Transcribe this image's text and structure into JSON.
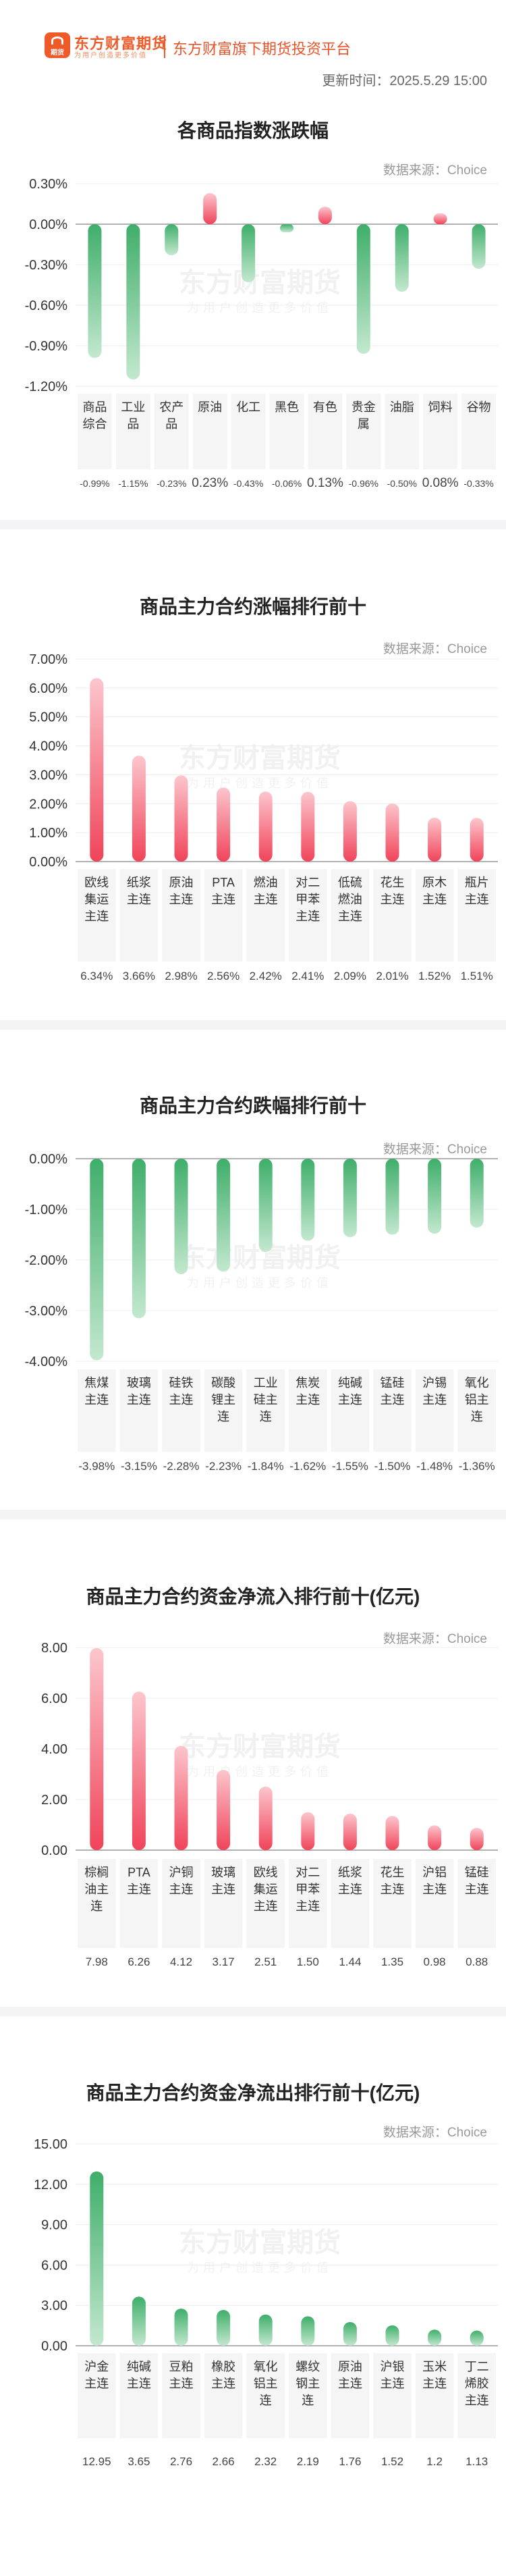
{
  "header": {
    "brand": "东方财富期货",
    "brand_sub": "为用户创造更多价值",
    "logo_text": "期货",
    "platform": "东方财富旗下期货投资平台",
    "updated": "更新时间：2025.5.29 15:00"
  },
  "source_label": "数据来源：Choice",
  "watermark": {
    "main": "东方财富期货",
    "sub": "为用户创造更多价值"
  },
  "colors": {
    "up": "#f0445a",
    "up_light": "#fcc6cd",
    "down": "#3fae6a",
    "down_light": "#c3e8cf",
    "label_bg": "#f5f5f5"
  },
  "chart_data": [
    {
      "type": "bar",
      "title": "各商品指数涨跌幅",
      "categories": [
        "商品综合",
        "工业品",
        "农产品",
        "原油",
        "化工",
        "黑色",
        "有色",
        "贵金属",
        "油脂",
        "饲料",
        "谷物"
      ],
      "values": [
        -0.99,
        -1.15,
        -0.23,
        0.23,
        -0.43,
        -0.06,
        0.13,
        -0.96,
        -0.5,
        0.08,
        -0.33
      ],
      "value_labels": [
        "-0.99%",
        "-1.15%",
        "-0.23%",
        "0.23%",
        "-0.43%",
        "-0.06%",
        "0.13%",
        "-0.96%",
        "-0.50%",
        "0.08%",
        "-0.33%"
      ],
      "yticks": [
        "0.30%",
        "0.00%",
        "-0.30%",
        "-0.60%",
        "-0.90%",
        "-1.20%"
      ],
      "ylim": [
        -1.2,
        0.3
      ]
    },
    {
      "type": "bar",
      "title": "商品主力合约涨幅排行前十",
      "categories": [
        "欧线集运主连",
        "纸浆主连",
        "原油主连",
        "PTA主连",
        "燃油主连",
        "对二甲苯主连",
        "低硫燃油主连",
        "花生主连",
        "原木主连",
        "瓶片主连"
      ],
      "values": [
        6.34,
        3.66,
        2.98,
        2.56,
        2.42,
        2.41,
        2.09,
        2.01,
        1.52,
        1.51
      ],
      "value_labels": [
        "6.34%",
        "3.66%",
        "2.98%",
        "2.56%",
        "2.42%",
        "2.41%",
        "2.09%",
        "2.01%",
        "1.52%",
        "1.51%"
      ],
      "yticks": [
        "7.00%",
        "6.00%",
        "5.00%",
        "4.00%",
        "3.00%",
        "2.00%",
        "1.00%",
        "0.00%"
      ],
      "ylim": [
        0,
        7
      ]
    },
    {
      "type": "bar",
      "title": "商品主力合约跌幅排行前十",
      "categories": [
        "焦煤主连",
        "玻璃主连",
        "硅铁主连",
        "碳酸锂主连",
        "工业硅主连",
        "焦炭主连",
        "纯碱主连",
        "锰硅主连",
        "沪锡主连",
        "氧化铝主连"
      ],
      "values": [
        -3.98,
        -3.15,
        -2.28,
        -2.23,
        -1.84,
        -1.62,
        -1.55,
        -1.5,
        -1.48,
        -1.36
      ],
      "value_labels": [
        "-3.98%",
        "-3.15%",
        "-2.28%",
        "-2.23%",
        "-1.84%",
        "-1.62%",
        "-1.55%",
        "-1.50%",
        "-1.48%",
        "-1.36%"
      ],
      "yticks": [
        "0.00%",
        "-1.00%",
        "-2.00%",
        "-3.00%",
        "-4.00%"
      ],
      "ylim": [
        -4,
        0
      ]
    },
    {
      "type": "bar",
      "title": "商品主力合约资金净流入排行前十(亿元)",
      "categories": [
        "棕榈油主连",
        "PTA主连",
        "沪铜主连",
        "玻璃主连",
        "欧线集运主连",
        "对二甲苯主连",
        "纸浆主连",
        "花生主连",
        "沪铝主连",
        "锰硅主连"
      ],
      "values": [
        7.98,
        6.26,
        4.12,
        3.17,
        2.51,
        1.5,
        1.44,
        1.35,
        0.98,
        0.88
      ],
      "value_labels": [
        "7.98",
        "6.26",
        "4.12",
        "3.17",
        "2.51",
        "1.50",
        "1.44",
        "1.35",
        "0.98",
        "0.88"
      ],
      "yticks": [
        "8.00",
        "6.00",
        "4.00",
        "2.00",
        "0.00"
      ],
      "ylim": [
        0,
        8
      ]
    },
    {
      "type": "bar",
      "title": "商品主力合约资金净流出排行前十(亿元)",
      "categories": [
        "沪金主连",
        "纯碱主连",
        "豆粕主连",
        "橡胶主连",
        "氧化铝主连",
        "螺纹钢主连",
        "原油主连",
        "沪银主连",
        "玉米主连",
        "丁二烯胶主连"
      ],
      "values": [
        12.95,
        3.65,
        2.76,
        2.66,
        2.32,
        2.19,
        1.76,
        1.52,
        1.2,
        1.13
      ],
      "value_labels": [
        "12.95",
        "3.65",
        "2.76",
        "2.66",
        "2.32",
        "2.19",
        "1.76",
        "1.52",
        "1.2",
        "1.13"
      ],
      "yticks": [
        "15.00",
        "12.00",
        "9.00",
        "6.00",
        "3.00",
        "0.00"
      ],
      "ylim": [
        0,
        15
      ]
    }
  ]
}
